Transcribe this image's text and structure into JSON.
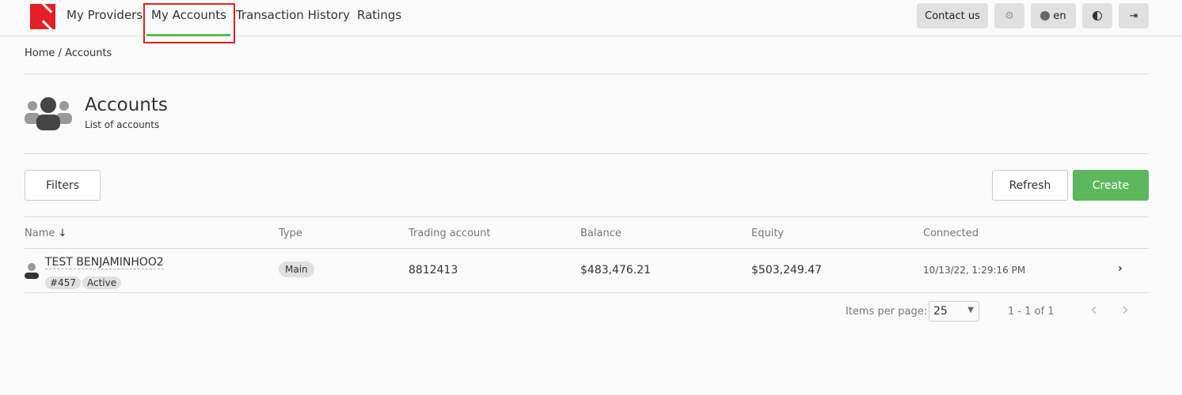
{
  "nav": {
    "items": [
      "My Providers",
      "My Accounts",
      "Transaction History",
      "Ratings"
    ],
    "active": "My Accounts"
  },
  "header": {
    "contact": "Contact us",
    "language": "en",
    "icons": [
      "gear-icon",
      "globe-icon",
      "contrast-icon",
      "logout-icon"
    ]
  },
  "breadcrumb": {
    "home": "Home",
    "sep": "/",
    "current": "Accounts"
  },
  "page": {
    "title": "Accounts",
    "subtitle": "List of accounts"
  },
  "toolbar": {
    "filters": "Filters",
    "refresh": "Refresh",
    "create": "Create"
  },
  "table": {
    "headers": [
      "Name",
      "Type",
      "Trading account",
      "Balance",
      "Equity",
      "Connected"
    ],
    "rows": [
      {
        "name": "TEST BENJAMINHOO2",
        "id": "#457",
        "status": "Active",
        "type": "Main",
        "trading_account": "8812413",
        "balance": "$483,476.21",
        "equity": "$503,249.47",
        "connected": "10/13/22, 1:29:16 PM"
      }
    ]
  },
  "pagination": {
    "label": "Items per page:",
    "per_page": "25",
    "range": "1 - 1 of 1"
  },
  "colors": {
    "brand": "#e31e24",
    "accent": "#5cb85c"
  }
}
